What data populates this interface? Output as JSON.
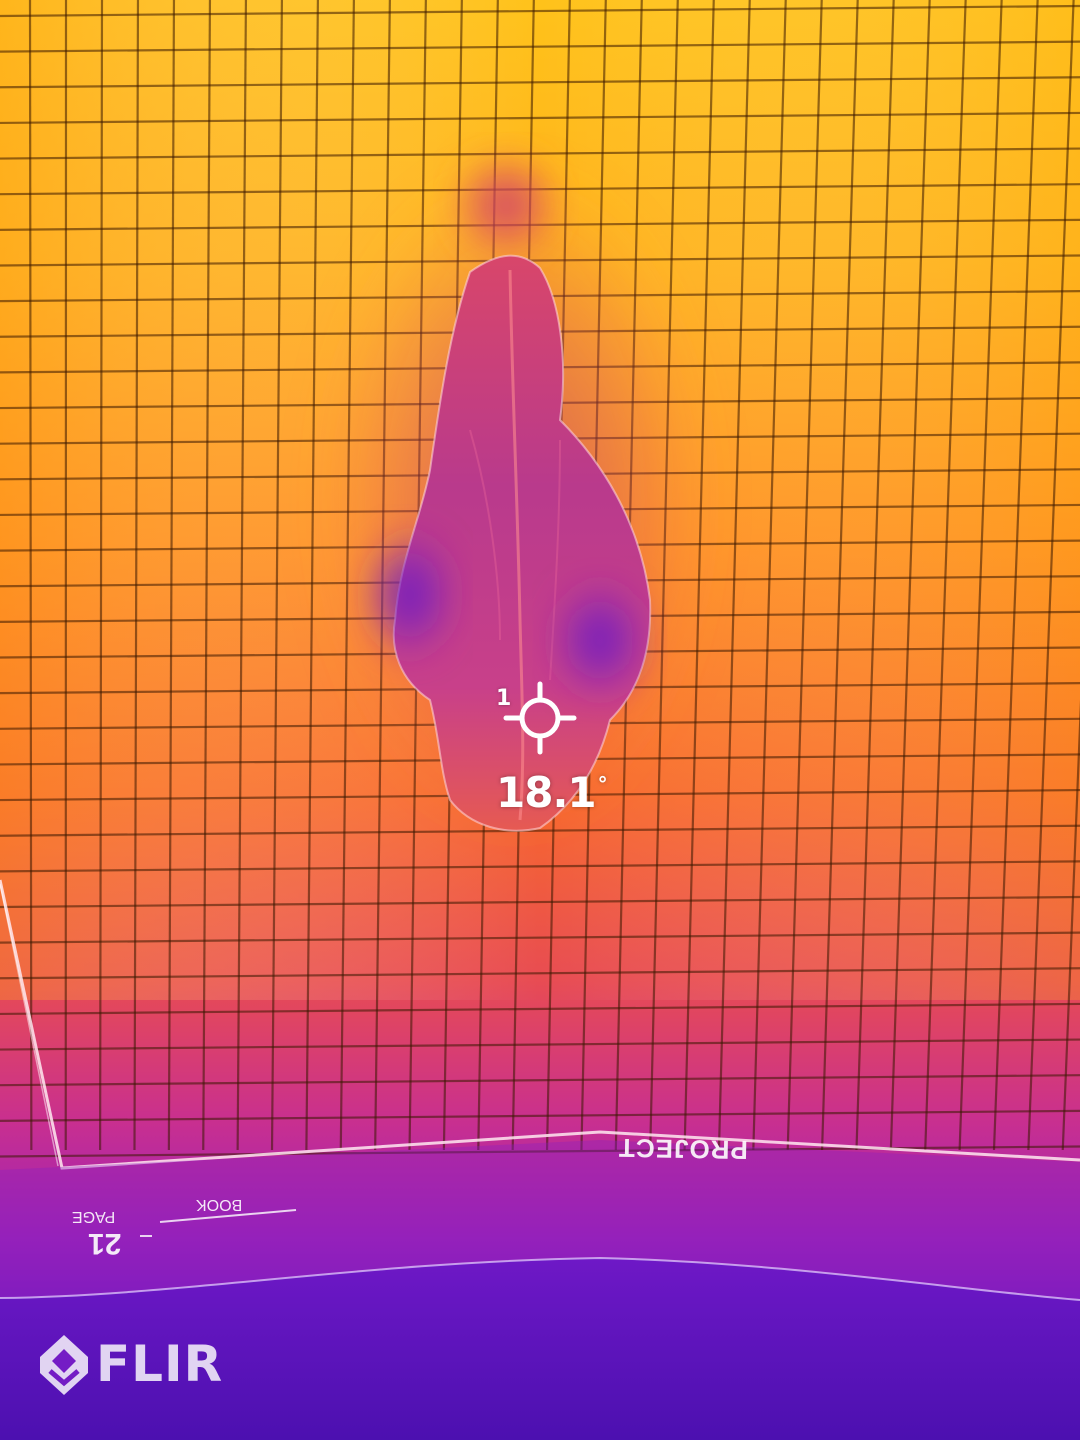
{
  "image": {
    "description_kind": "thermal camera capture",
    "palette": {
      "hot": "#ffc21a",
      "warm": "#ff8a1e",
      "mid": "#f05a3a",
      "cool": "#c22e8a",
      "cold": "#7a1fc8",
      "coldest": "#4a12b8"
    },
    "colors": {
      "overlay_text": "#ffffff",
      "grid_line": "#3a1a00"
    }
  },
  "measurement": {
    "spot_label": "1",
    "temperature": "18.1",
    "unit_symbol": "°",
    "reticle_icon": "crosshair-icon"
  },
  "branding": {
    "logo_text": "FLIR",
    "logo_icon": "flir-diamond-icon"
  },
  "paper_print": {
    "project_label": "PROJECT",
    "page_number": "21",
    "page_word": "PAGE",
    "book_word": "BOOK"
  }
}
